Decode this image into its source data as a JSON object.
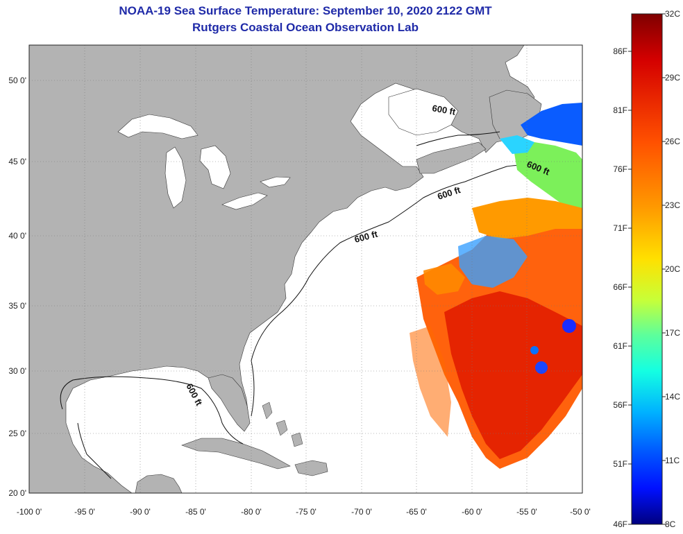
{
  "header": {
    "title": "NOAA-19 Sea Surface Temperature:  September 10, 2020 2122 GMT",
    "subtitle": "Rutgers Coastal Ocean Observation Lab"
  },
  "map": {
    "lon_labels": [
      "-100 0'",
      "-95 0'",
      "-90 0'",
      "-85 0'",
      "-80 0'",
      "-75 0'",
      "-70 0'",
      "-65 0'",
      "-60 0'",
      "-55 0'",
      "-50 0'"
    ],
    "lat_labels": [
      "50 0'",
      "45 0'",
      "40 0'",
      "35 0'",
      "30 0'",
      "25 0'",
      "20 0'"
    ],
    "contour_labels": [
      "600 ft",
      "600 ft",
      "600 ft",
      "600 ft",
      "600 ft"
    ],
    "land_color": "#b3b3b3",
    "ocean_color": "#ffffff"
  },
  "colorbar": {
    "fahrenheit_labels": [
      "86F",
      "81F",
      "76F",
      "71F",
      "66F",
      "61F",
      "56F",
      "51F",
      "46F"
    ],
    "celsius_labels": [
      "32C",
      "29C",
      "26C",
      "23C",
      "20C",
      "17C",
      "14C",
      "11C",
      "8C"
    ],
    "colors": [
      "#7f0000",
      "#d40000",
      "#ff4a00",
      "#ff9400",
      "#ffd800",
      "#d4ff23",
      "#6fff87",
      "#23ffd4",
      "#00c4ff",
      "#0077ff",
      "#0023ff",
      "#0000c8",
      "#00007f"
    ]
  }
}
